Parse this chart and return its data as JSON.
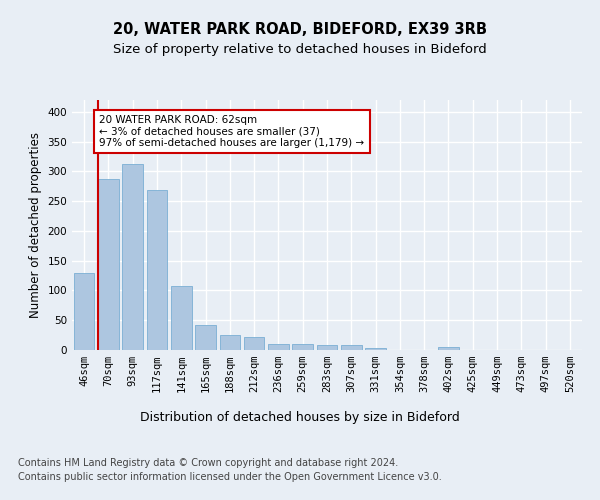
{
  "title_line1": "20, WATER PARK ROAD, BIDEFORD, EX39 3RB",
  "title_line2": "Size of property relative to detached houses in Bideford",
  "xlabel": "Distribution of detached houses by size in Bideford",
  "ylabel": "Number of detached properties",
  "categories": [
    "46sqm",
    "70sqm",
    "93sqm",
    "117sqm",
    "141sqm",
    "165sqm",
    "188sqm",
    "212sqm",
    "236sqm",
    "259sqm",
    "283sqm",
    "307sqm",
    "331sqm",
    "354sqm",
    "378sqm",
    "402sqm",
    "425sqm",
    "449sqm",
    "473sqm",
    "497sqm",
    "520sqm"
  ],
  "values": [
    130,
    288,
    313,
    268,
    108,
    42,
    25,
    22,
    10,
    10,
    8,
    8,
    4,
    0,
    0,
    5,
    0,
    0,
    0,
    0,
    0
  ],
  "bar_color": "#adc6e0",
  "bar_edge_color": "#7aafd4",
  "highlight_line_color": "#cc0000",
  "annotation_text": "20 WATER PARK ROAD: 62sqm\n← 3% of detached houses are smaller (37)\n97% of semi-detached houses are larger (1,179) →",
  "annotation_box_color": "#ffffff",
  "annotation_box_edge": "#cc0000",
  "ylim": [
    0,
    420
  ],
  "yticks": [
    0,
    50,
    100,
    150,
    200,
    250,
    300,
    350,
    400
  ],
  "footer_line1": "Contains HM Land Registry data © Crown copyright and database right 2024.",
  "footer_line2": "Contains public sector information licensed under the Open Government Licence v3.0.",
  "bg_color": "#e8eef5",
  "plot_bg_color": "#e8eef5",
  "grid_color": "#ffffff",
  "title1_fontsize": 10.5,
  "title2_fontsize": 9.5,
  "xlabel_fontsize": 9,
  "ylabel_fontsize": 8.5,
  "tick_fontsize": 7.5,
  "footer_fontsize": 7
}
